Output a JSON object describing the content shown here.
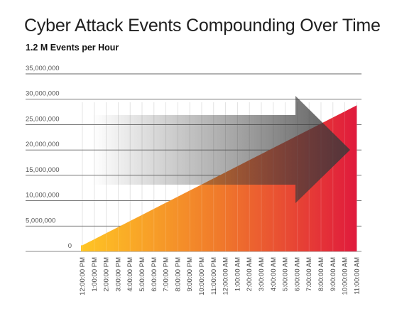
{
  "chart_data": {
    "type": "area",
    "title": "Cyber Attack Events Compounding Over Time",
    "subtitle": "1.2 M Events per Hour",
    "xlabel": "",
    "ylabel": "",
    "categories": [
      "12:00:00 PM",
      "1:00:00 PM",
      "2:00:00 PM",
      "3:00:00 PM",
      "4:00:00 PM",
      "5:00:00 PM",
      "6:00:00 PM",
      "7:00:00 PM",
      "8:00:00 PM",
      "9:00:00 PM",
      "10:00:00 PM",
      "11:00:00 PM",
      "12:00:00 AM",
      "1:00:00 AM",
      "2:00:00 AM",
      "3:00:00 AM",
      "4:00:00 AM",
      "5:00:00 AM",
      "6:00:00 AM",
      "7:00:00 AM",
      "8:00:00 AM",
      "9:00:00 AM",
      "10:00:00 AM",
      "11:00:00 AM"
    ],
    "values": [
      1200000,
      2400000,
      3600000,
      4800000,
      6000000,
      7200000,
      8400000,
      9600000,
      10800000,
      12000000,
      13200000,
      14400000,
      15600000,
      16800000,
      18000000,
      19200000,
      20400000,
      21600000,
      22800000,
      24000000,
      25200000,
      26400000,
      27600000,
      28800000
    ],
    "yticks": [
      "0",
      "5,000,000",
      "10,000,000",
      "15,000,000",
      "20,000,000",
      "25,000,000",
      "30,000,000",
      "35,000,000"
    ],
    "ylim": [
      0,
      35000000
    ],
    "grid": true,
    "colors": {
      "start": "#ffc524",
      "middle": "#f07a2b",
      "end": "#e01a3c",
      "arrow": "#3a3a3a",
      "gridline": "#666666"
    }
  }
}
